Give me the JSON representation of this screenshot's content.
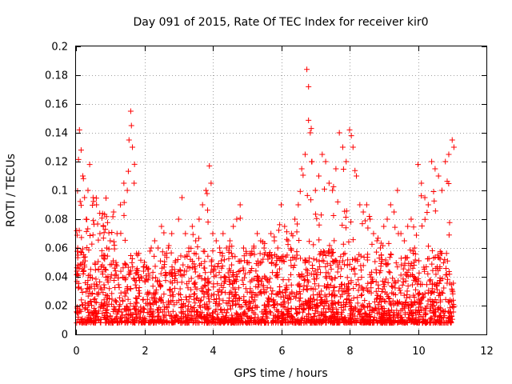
{
  "chart_data": {
    "type": "scatter",
    "title": "Day 091 of 2015, Rate Of TEC Index for receiver kir0",
    "xlabel": "GPS time / hours",
    "ylabel": "ROTI / TECUs",
    "xlim": [
      0,
      12
    ],
    "ylim": [
      0,
      0.2
    ],
    "xticks": [
      "0",
      "2",
      "4",
      "6",
      "8",
      "10",
      "12"
    ],
    "yticks": [
      "0",
      "0.02",
      "0.04",
      "0.06",
      "0.08",
      "0.1",
      "0.12",
      "0.14",
      "0.16",
      "0.18",
      "0.2"
    ],
    "xtick_values": [
      0,
      2,
      4,
      6,
      8,
      10,
      12
    ],
    "ytick_values": [
      0,
      0.02,
      0.04,
      0.06,
      0.08,
      0.1,
      0.12,
      0.14,
      0.16,
      0.18,
      0.2
    ],
    "grid": true,
    "marker": "+",
    "marker_color": "#ff0000",
    "series": [
      {
        "name": "ROTI",
        "x": [
          0.05,
          0.1,
          0.15,
          0.2,
          0.25,
          0.3,
          0.35,
          0.4,
          0.5,
          0.6,
          0.7,
          0.8,
          0.9,
          1.0,
          1.1,
          1.2,
          1.3,
          1.4,
          1.5,
          1.55,
          1.6,
          1.62,
          1.65,
          1.7,
          1.8,
          1.9,
          2.0,
          2.1,
          2.2,
          2.3,
          2.4,
          2.5,
          2.6,
          2.7,
          2.8,
          2.9,
          3.0,
          3.1,
          3.2,
          3.3,
          3.4,
          3.5,
          3.6,
          3.7,
          3.8,
          3.9,
          3.95,
          4.0,
          4.1,
          4.2,
          4.3,
          4.4,
          4.5,
          4.6,
          4.7,
          4.8,
          4.9,
          5.0,
          5.1,
          5.2,
          5.3,
          5.4,
          5.5,
          5.6,
          5.7,
          5.8,
          5.9,
          6.0,
          6.1,
          6.2,
          6.3,
          6.4,
          6.5,
          6.6,
          6.7,
          6.75,
          6.8,
          6.85,
          6.9,
          7.0,
          7.1,
          7.2,
          7.3,
          7.4,
          7.5,
          7.6,
          7.7,
          7.8,
          7.9,
          8.0,
          8.05,
          8.1,
          8.2,
          8.3,
          8.4,
          8.5,
          8.6,
          8.7,
          8.8,
          8.9,
          9.0,
          9.1,
          9.2,
          9.3,
          9.4,
          9.5,
          9.6,
          9.7,
          9.8,
          9.9,
          10.0,
          10.1,
          10.2,
          10.3,
          10.4,
          10.5,
          10.6,
          10.7,
          10.8,
          10.9,
          11.0,
          11.05
        ],
        "values": [
          0.06,
          0.142,
          0.128,
          0.11,
          0.095,
          0.08,
          0.1,
          0.118,
          0.095,
          0.09,
          0.07,
          0.075,
          0.06,
          0.065,
          0.085,
          0.07,
          0.09,
          0.105,
          0.1,
          0.135,
          0.155,
          0.145,
          0.13,
          0.105,
          0.055,
          0.04,
          0.05,
          0.045,
          0.06,
          0.065,
          0.06,
          0.075,
          0.055,
          0.06,
          0.07,
          0.05,
          0.08,
          0.095,
          0.07,
          0.06,
          0.075,
          0.065,
          0.08,
          0.09,
          0.1,
          0.117,
          0.105,
          0.07,
          0.065,
          0.06,
          0.07,
          0.06,
          0.065,
          0.075,
          0.08,
          0.09,
          0.06,
          0.05,
          0.055,
          0.06,
          0.07,
          0.065,
          0.06,
          0.055,
          0.07,
          0.065,
          0.06,
          0.09,
          0.075,
          0.065,
          0.07,
          0.08,
          0.09,
          0.115,
          0.125,
          0.184,
          0.172,
          0.14,
          0.12,
          0.1,
          0.11,
          0.125,
          0.12,
          0.105,
          0.1,
          0.115,
          0.14,
          0.13,
          0.12,
          0.142,
          0.138,
          0.13,
          0.11,
          0.09,
          0.085,
          0.09,
          0.08,
          0.07,
          0.065,
          0.06,
          0.075,
          0.08,
          0.09,
          0.085,
          0.1,
          0.07,
          0.065,
          0.075,
          0.08,
          0.06,
          0.118,
          0.105,
          0.095,
          0.09,
          0.12,
          0.115,
          0.11,
          0.1,
          0.12,
          0.125,
          0.135,
          0.13
        ]
      }
    ]
  }
}
